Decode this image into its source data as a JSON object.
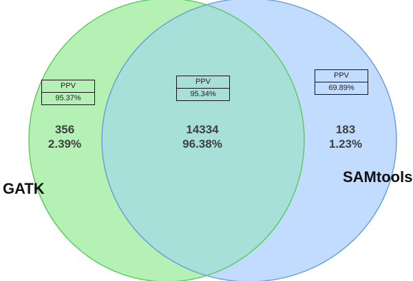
{
  "sets": {
    "left": {
      "label": "GATK",
      "fill": "#b5f0b5",
      "stroke": "#5ccc5c"
    },
    "right": {
      "label": "SAMtools",
      "fill": "#c2dcff",
      "stroke": "#6a9fd9"
    },
    "overlap_fill": "#a6e0d8"
  },
  "regions": {
    "left_only": {
      "count": "356",
      "percent": "2.39%",
      "ppv_label": "PPV",
      "ppv_value": "95.37%"
    },
    "intersection": {
      "count": "14334",
      "percent": "96.38%",
      "ppv_label": "PPV",
      "ppv_value": "95.34%"
    },
    "right_only": {
      "count": "183",
      "percent": "1.23%",
      "ppv_label": "PPV",
      "ppv_value": "69.89%"
    }
  }
}
